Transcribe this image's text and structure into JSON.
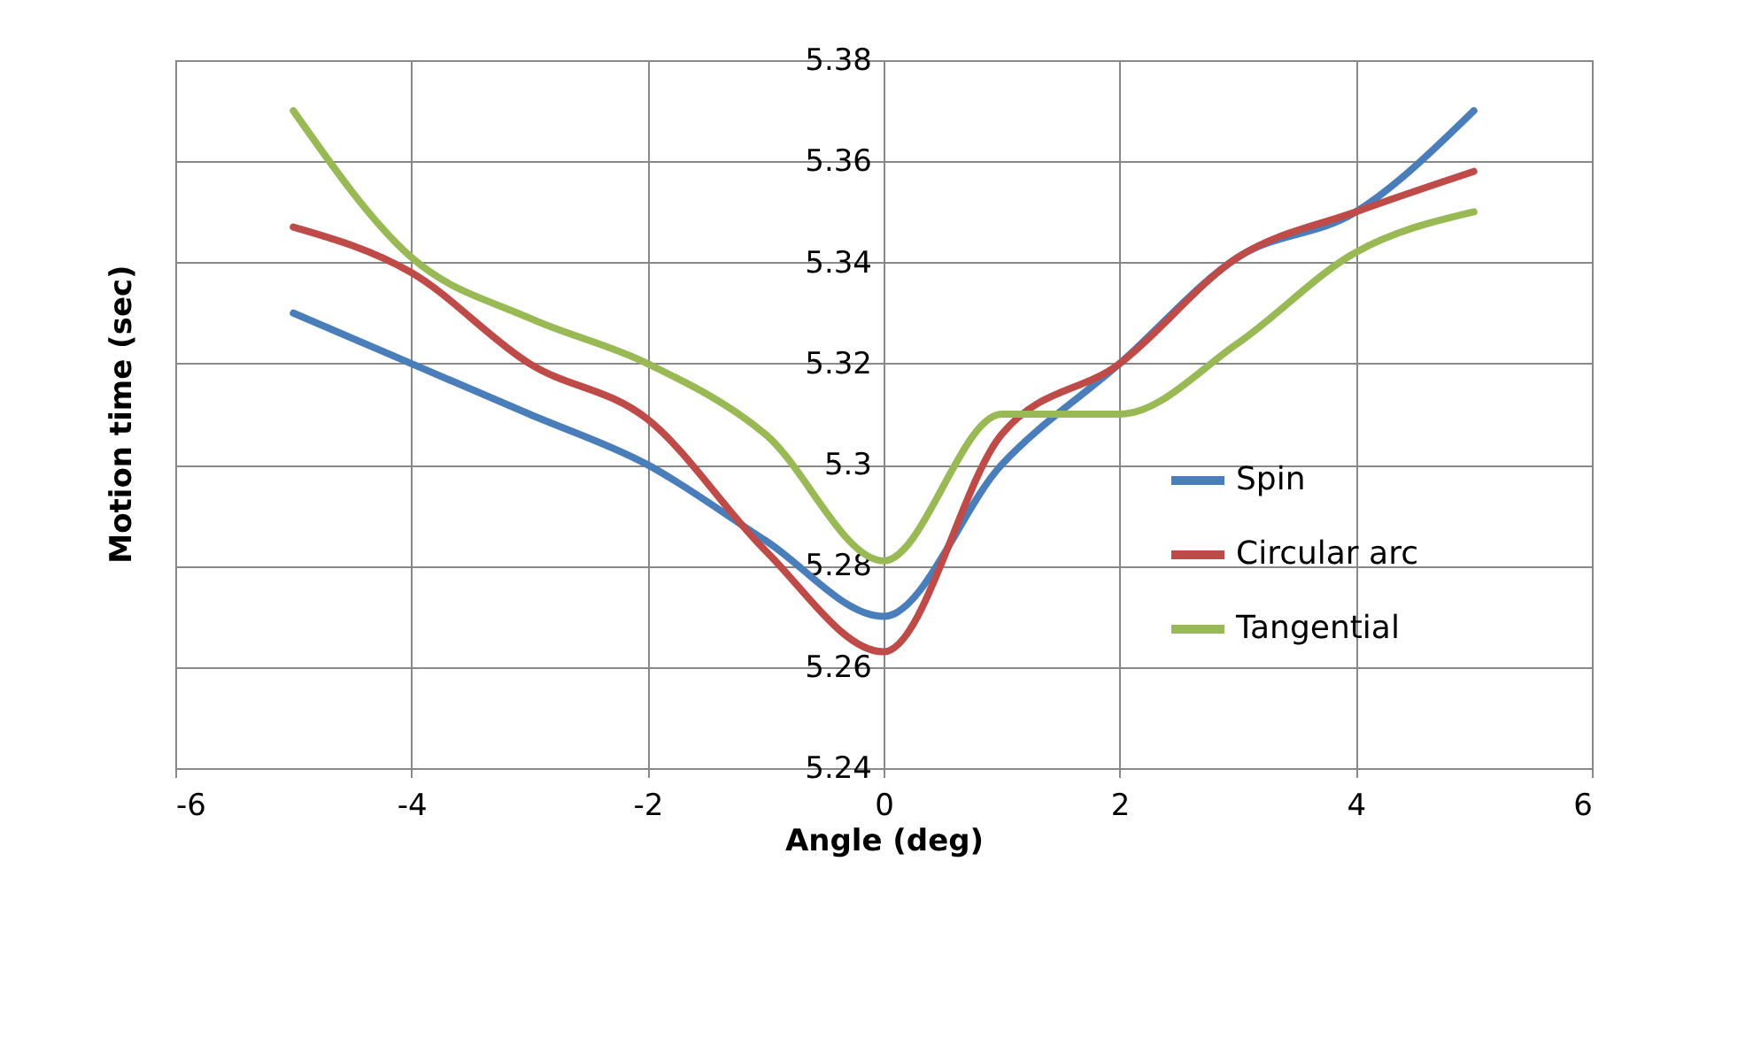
{
  "chart_data": {
    "type": "line",
    "xlabel": "Angle (deg)",
    "ylabel": "Motion time (sec)",
    "x": [
      -5,
      -4,
      -3,
      -2,
      -1,
      0,
      1,
      2,
      3,
      4,
      5
    ],
    "series": [
      {
        "name": "Spin",
        "color": "#4a7ebb",
        "values": [
          5.33,
          5.32,
          5.31,
          5.3,
          5.285,
          5.27,
          5.3,
          5.32,
          5.341,
          5.35,
          5.37
        ]
      },
      {
        "name": "Circular arc",
        "color": "#be4b48",
        "values": [
          5.347,
          5.338,
          5.32,
          5.309,
          5.283,
          5.263,
          5.306,
          5.32,
          5.341,
          5.35,
          5.358
        ]
      },
      {
        "name": "Tangential",
        "color": "#98b954",
        "values": [
          5.37,
          5.341,
          5.329,
          5.32,
          5.306,
          5.281,
          5.31,
          5.31,
          5.324,
          5.342,
          5.35
        ]
      }
    ],
    "xlim": [
      -6,
      6
    ],
    "xticks": [
      -6,
      -4,
      -2,
      0,
      2,
      4,
      6
    ],
    "ylim": [
      5.24,
      5.38
    ],
    "yticks": [
      5.24,
      5.26,
      5.28,
      5.3,
      5.32,
      5.34,
      5.36,
      5.38
    ],
    "grid": true,
    "legend": "right",
    "marker": "none",
    "line_style": "solid"
  }
}
